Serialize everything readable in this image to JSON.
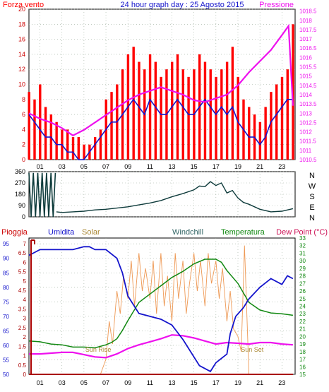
{
  "header": {
    "left_label": "Forza vento",
    "title": "24 hour graph day : 25 Agosto 2015",
    "right_label": "Pressione"
  },
  "colors": {
    "red": "#ff0000",
    "blue": "#1515cc",
    "magenta": "#ee11ee",
    "green": "#118811",
    "dark_teal": "#0e3b3b",
    "orange": "#ee9955",
    "dark_red": "#aa0000",
    "grid": "#99aa99",
    "frame": "#000000"
  },
  "x_ticks": [
    "01",
    "03",
    "05",
    "07",
    "09",
    "11",
    "13",
    "15",
    "17",
    "19",
    "21",
    "23"
  ],
  "wind_panel": {
    "left_ticks": [
      "0",
      "2",
      "4",
      "6",
      "8",
      "10",
      "12",
      "14",
      "16",
      "18",
      "20"
    ],
    "right_ticks": [
      "1010.5",
      "1011",
      "1011.5",
      "1012",
      "1012.5",
      "1013",
      "1013.5",
      "1014",
      "1014.5",
      "1015",
      "1015.5",
      "1016",
      "1016.5",
      "1017",
      "1017.5",
      "1018",
      "1018.5"
    ]
  },
  "dir_panel": {
    "left_ticks": [
      "360",
      "270",
      "180",
      "90",
      "0"
    ],
    "right_labels": [
      "N",
      "W",
      "S",
      "E",
      "N"
    ]
  },
  "lower_panel": {
    "labels": {
      "rain": "Pioggia",
      "humidity": "Umidita",
      "solar": "Solar",
      "windchill": "Windchill",
      "temperature": "Temperatura",
      "dewpoint": "Dew Point (°C)"
    },
    "humidity_ticks": [
      "95",
      "90",
      "85",
      "80",
      "75",
      "70",
      "65",
      "60",
      "55",
      "50"
    ],
    "rain_ticks": [
      "7",
      "6.5",
      "6",
      "5.5",
      "5",
      "4.5",
      "4",
      "3.5",
      "3",
      "2.5",
      "2",
      "1.5",
      "1",
      "0.5",
      "0"
    ],
    "temp_ticks": [
      "33",
      "32",
      "31",
      "30",
      "29",
      "28",
      "27",
      "26",
      "25",
      "24",
      "23",
      "22",
      "21",
      "20",
      "19",
      "18",
      "17",
      "16",
      "15"
    ],
    "sunrise": "Sun Rise",
    "sunset": "Sun Set"
  },
  "chart_data": [
    {
      "type": "line",
      "title": "24 hour graph day : 25 Agosto 2015",
      "xlabel": "",
      "ylabel": "Forza vento",
      "y2label": "Pressione",
      "xlim": [
        0,
        24.2
      ],
      "ylim": [
        0,
        20
      ],
      "y2lim": [
        1010.5,
        1018.6
      ],
      "grid": true,
      "series": [
        {
          "name": "Forza vento",
          "axis": "left",
          "style": "bars",
          "color": "#ff0000",
          "x": [
            0,
            0.5,
            1,
            1.5,
            2,
            2.5,
            3,
            3.5,
            4,
            4.5,
            5,
            5.5,
            6,
            6.5,
            7,
            7.5,
            8,
            8.5,
            9,
            9.5,
            10,
            10.5,
            11,
            11.5,
            12,
            12.5,
            13,
            13.5,
            14,
            14.5,
            15,
            15.5,
            16,
            16.5,
            17,
            17.5,
            18,
            18.5,
            19,
            19.5,
            20,
            20.5,
            21,
            21.5,
            22,
            22.5,
            23,
            23.5,
            24
          ],
          "values": [
            9,
            8,
            10,
            7,
            6,
            5,
            4,
            4,
            3,
            3,
            2,
            2,
            3,
            4,
            8,
            9,
            10,
            12,
            14,
            15,
            13,
            12,
            14,
            13,
            11,
            12,
            13,
            14,
            12,
            11,
            12,
            14,
            13,
            12,
            11,
            12,
            13,
            15,
            11,
            8,
            7,
            6,
            5,
            7,
            9,
            10,
            11,
            12,
            18
          ]
        },
        {
          "name": "Wind speed",
          "axis": "left",
          "style": "line",
          "color": "#1515cc",
          "x": [
            0,
            0.5,
            1,
            1.5,
            2,
            2.5,
            3,
            3.5,
            4,
            4.5,
            5,
            5.5,
            6,
            6.5,
            7,
            7.5,
            8,
            8.5,
            9,
            9.5,
            10,
            10.5,
            11,
            11.5,
            12,
            12.5,
            13,
            13.5,
            14,
            14.5,
            15,
            15.5,
            16,
            16.5,
            17,
            17.5,
            18,
            18.5,
            19,
            19.5,
            20,
            20.5,
            21,
            21.5,
            22,
            22.5,
            23,
            23.5,
            24
          ],
          "values": [
            6,
            5,
            4,
            3,
            3,
            2,
            2,
            1,
            1,
            0,
            0,
            1,
            2,
            3,
            4,
            5,
            5,
            6,
            7,
            8,
            7,
            6,
            8,
            7,
            6,
            6,
            7,
            8,
            7,
            6,
            6,
            7,
            8,
            7,
            6,
            7,
            6,
            7,
            5,
            4,
            3,
            3,
            2,
            3,
            5,
            6,
            7,
            8,
            8
          ]
        },
        {
          "name": "Pressione",
          "axis": "right",
          "style": "line",
          "color": "#ee11ee",
          "x": [
            0,
            1,
            2,
            3,
            4,
            5,
            6,
            7,
            8,
            9,
            10,
            11,
            12,
            13,
            14,
            15,
            16,
            17,
            18,
            19,
            20,
            21,
            22,
            23,
            23.6,
            24
          ],
          "values": [
            1013,
            1012.7,
            1012.5,
            1012.2,
            1011.8,
            1012.1,
            1012.5,
            1012.9,
            1013.3,
            1013.7,
            1014,
            1014.2,
            1014.4,
            1014.2,
            1014,
            1013.7,
            1013.6,
            1013.8,
            1014,
            1014.5,
            1015.2,
            1015.8,
            1016.4,
            1017.2,
            1017.7,
            1013.4
          ]
        }
      ]
    },
    {
      "type": "line",
      "title": "",
      "ylabel": "",
      "ylim": [
        0,
        360
      ],
      "xlim": [
        0,
        24.2
      ],
      "series": [
        {
          "name": "Wind direction",
          "color": "#0e3b3b",
          "x": [
            2.5,
            3,
            4,
            5,
            6,
            7,
            8,
            9,
            10,
            11,
            12,
            13,
            14,
            15,
            15.5,
            16,
            16.5,
            17,
            17.5,
            18,
            18.5,
            19,
            19.5,
            20,
            21,
            22,
            23,
            24
          ],
          "values": [
            40,
            35,
            40,
            45,
            55,
            60,
            70,
            80,
            95,
            110,
            130,
            160,
            185,
            215,
            245,
            240,
            280,
            250,
            270,
            190,
            210,
            150,
            115,
            100,
            60,
            40,
            45,
            65
          ]
        },
        {
          "name": "Wind direction (early)",
          "style": "spikes",
          "color": "#0e3b3b",
          "x": [
            0,
            0.2,
            0.4,
            0.6,
            0.8,
            1,
            1.2,
            1.4,
            1.6,
            1.8,
            2,
            2.2,
            2.4
          ],
          "values": [
            350,
            0,
            350,
            0,
            350,
            0,
            350,
            0,
            350,
            0,
            350,
            0,
            350
          ]
        }
      ]
    },
    {
      "type": "line",
      "title": "",
      "xlim": [
        0,
        24.2
      ],
      "humidity_ylim": [
        50,
        97
      ],
      "temp_ylim": [
        15,
        33
      ],
      "rain_ylim": [
        0,
        7.3
      ],
      "series": [
        {
          "name": "Umidita",
          "axis": "humidity",
          "color": "#1515cc",
          "x": [
            0,
            0.5,
            1,
            2,
            3,
            4,
            5,
            5.5,
            6,
            7,
            8,
            8.5,
            9,
            10,
            11,
            12,
            13,
            14,
            14.5,
            15,
            15.5,
            16,
            16.5,
            17,
            18,
            18.3,
            18.8,
            19.5,
            20,
            21,
            22,
            23,
            23.5,
            24
          ],
          "values": [
            91,
            92,
            93,
            93,
            93,
            93,
            94,
            94,
            93,
            93,
            90,
            85,
            77,
            71,
            70,
            69,
            67,
            62,
            59,
            56,
            53,
            52,
            51,
            54,
            57,
            64,
            70,
            73,
            76,
            80,
            83,
            81,
            84,
            83
          ]
        },
        {
          "name": "Temperatura",
          "axis": "temp",
          "color": "#118811",
          "x": [
            0,
            1,
            2,
            3,
            4,
            5,
            6,
            7,
            7.5,
            8,
            8.5,
            9,
            10,
            11,
            12,
            13,
            14,
            15,
            16,
            17,
            17.5,
            18,
            19,
            20,
            21,
            22,
            23,
            24
          ],
          "values": [
            19.4,
            19.3,
            19,
            18.9,
            18.6,
            18.6,
            18.5,
            18.9,
            19.2,
            19.7,
            20.8,
            22.1,
            24.5,
            25.6,
            26.7,
            27.8,
            28.6,
            29.6,
            30.2,
            30.2,
            29.8,
            28.7,
            27,
            24.5,
            23.5,
            23.1,
            23,
            22.8
          ]
        },
        {
          "name": "Dew Point",
          "axis": "temp",
          "color": "#ee11ee",
          "x": [
            0,
            1,
            2,
            3,
            4,
            5,
            6,
            7,
            8,
            9,
            10,
            11,
            12,
            13,
            14,
            15,
            16,
            17,
            18,
            19,
            20,
            21,
            22,
            23,
            24
          ],
          "values": [
            17.7,
            17.7,
            17.8,
            17.9,
            17.9,
            17.6,
            17.3,
            17.2,
            17.7,
            18.4,
            18.9,
            19.3,
            19.7,
            20.2,
            20.1,
            19.8,
            19.4,
            19,
            19.2,
            19.1,
            19,
            19.2,
            19.2,
            19,
            18.9
          ]
        },
        {
          "name": "Solar",
          "axis": "temp",
          "style": "jagged",
          "color": "#ee9955",
          "x": [
            6.5,
            7,
            7.3,
            7.6,
            8,
            8.3,
            8.6,
            9,
            9.3,
            9.6,
            10,
            10.3,
            10.6,
            11,
            11.3,
            11.6,
            12,
            12.3,
            12.6,
            13,
            13.3,
            13.6,
            14,
            14.3,
            14.6,
            15,
            15.3,
            15.6,
            16,
            16.3,
            16.6,
            17,
            17.3,
            17.6,
            18,
            18.3,
            18.6,
            19,
            19.3,
            19.6,
            20
          ],
          "values": [
            15,
            17,
            22,
            19,
            26,
            23,
            28,
            25,
            30,
            24,
            31,
            26,
            29,
            25,
            30,
            23,
            31,
            24,
            28,
            22,
            31,
            25,
            30,
            23,
            27,
            31,
            26,
            30,
            24,
            31,
            27,
            30,
            25,
            29,
            22,
            26,
            21,
            20,
            18,
            32,
            15
          ]
        },
        {
          "name": "Pioggia",
          "axis": "rain",
          "color": "#aa0000",
          "x": [
            0,
            24
          ],
          "values": [
            0,
            0
          ]
        }
      ]
    }
  ]
}
